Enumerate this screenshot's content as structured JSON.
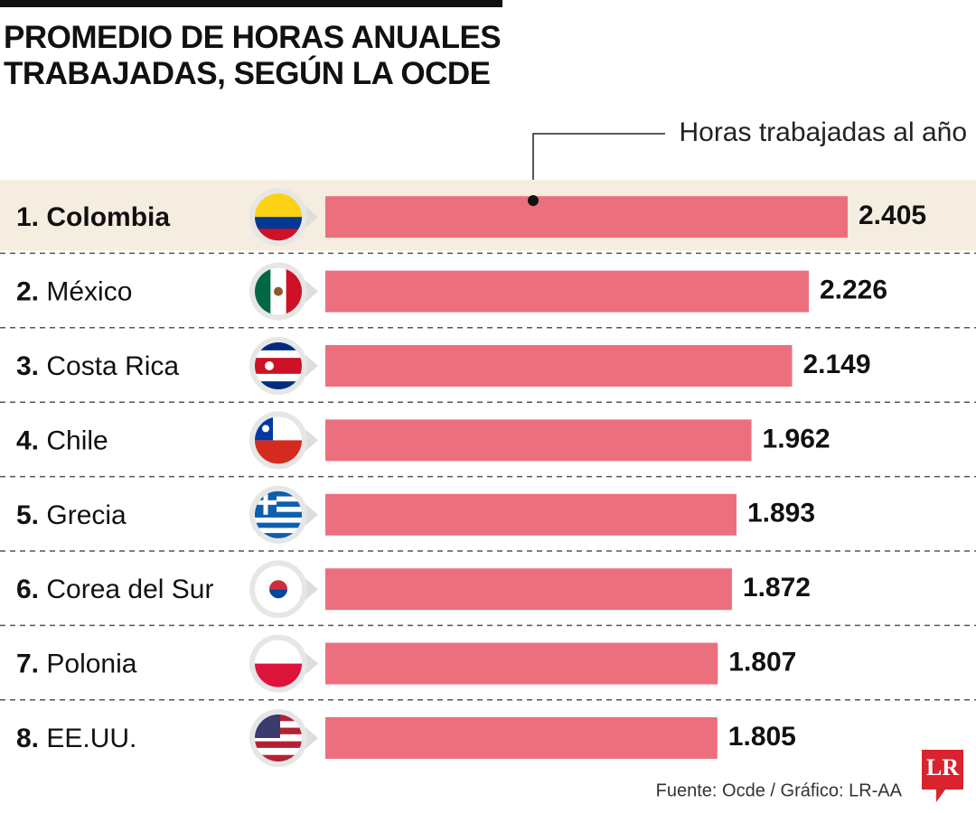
{
  "chart_data": {
    "type": "barh",
    "title": "PROMEDIO DE HORAS ANUALES TRABAJADAS, SEGÚN LA OCDE",
    "annotation": "Horas trabajadas al año",
    "ranks": [
      "1.",
      "2.",
      "3.",
      "4.",
      "5.",
      "6.",
      "7.",
      "8."
    ],
    "categories": [
      "Colombia",
      "México",
      "Costa Rica",
      "Chile",
      "Grecia",
      "Corea del Sur",
      "Polonia",
      "EE.UU."
    ],
    "values": [
      2405,
      2226,
      2149,
      1962,
      1893,
      1872,
      1807,
      1805
    ],
    "value_labels": [
      "2.405",
      "2.226",
      "2.149",
      "1.962",
      "1.893",
      "1.872",
      "1.807",
      "1.805"
    ],
    "color": "#ec6f7e",
    "highlight_index": 0,
    "source": "Fuente: Ocde / Gráfico: LR-AA",
    "logo": "LR"
  }
}
